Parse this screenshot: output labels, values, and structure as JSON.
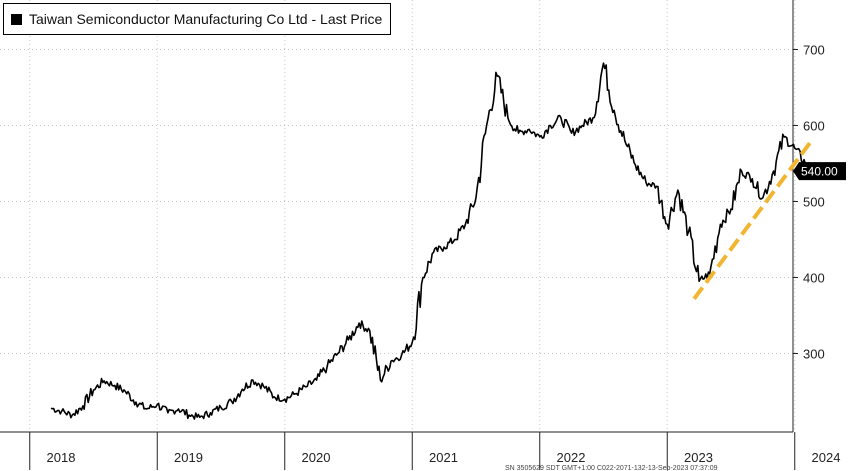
{
  "chart_data": {
    "type": "line",
    "title": "",
    "legend": {
      "entry": "Taiwan Semiconductor Manufacturing Co Ltd - Last Price",
      "placement": "top-left",
      "color": "#000000"
    },
    "xlabel": "",
    "ylabel": "",
    "x_ticks": [
      "2018",
      "2019",
      "2020",
      "2021",
      "2022",
      "2023",
      "2024"
    ],
    "x_range": [
      "2017-09",
      "2024-06"
    ],
    "y_ticks": [
      300,
      400,
      500,
      600,
      700
    ],
    "ylim": [
      200,
      760
    ],
    "y_axis_position": "right",
    "grid": "dotted",
    "last_price_label": "540.00",
    "footer_text": "SN 3505629 SDT  GMT+1:00  C022-2071-132-13-Sep-2023 07:37:09",
    "series": [
      {
        "name": "Taiwan Semiconductor Manufacturing Co Ltd - Last Price",
        "color": "#000000",
        "points": [
          [
            "2017-09",
            228
          ],
          [
            "2017-10",
            224
          ],
          [
            "2017-11",
            219
          ],
          [
            "2017-12",
            231
          ],
          [
            "2018-01",
            252
          ],
          [
            "2018-02",
            264
          ],
          [
            "2018-03",
            258
          ],
          [
            "2018-04",
            250
          ],
          [
            "2018-05",
            236
          ],
          [
            "2018-06",
            227
          ],
          [
            "2018-07",
            233
          ],
          [
            "2018-08",
            222
          ],
          [
            "2018-09",
            227
          ],
          [
            "2018-10",
            219
          ],
          [
            "2018-11",
            216
          ],
          [
            "2018-12",
            222
          ],
          [
            "2019-01",
            229
          ],
          [
            "2019-02",
            237
          ],
          [
            "2019-03",
            253
          ],
          [
            "2019-04",
            265
          ],
          [
            "2019-05",
            257
          ],
          [
            "2019-06",
            243
          ],
          [
            "2019-07",
            240
          ],
          [
            "2019-08",
            247
          ],
          [
            "2019-09",
            256
          ],
          [
            "2019-10",
            265
          ],
          [
            "2019-11",
            283
          ],
          [
            "2019-12",
            300
          ],
          [
            "2020-01",
            318
          ],
          [
            "2020-02",
            340
          ],
          [
            "2020-03",
            330
          ],
          [
            "2020-04",
            265
          ],
          [
            "2020-05",
            290
          ],
          [
            "2020-06",
            298
          ],
          [
            "2020-07",
            315
          ],
          [
            "2020-08",
            400
          ],
          [
            "2020-09",
            433
          ],
          [
            "2020-10",
            440
          ],
          [
            "2020-11",
            450
          ],
          [
            "2020-12",
            470
          ],
          [
            "2021-01",
            505
          ],
          [
            "2021-02",
            600
          ],
          [
            "2021-03",
            665
          ],
          [
            "2021-04",
            610
          ],
          [
            "2021-05",
            590
          ],
          [
            "2021-06",
            595
          ],
          [
            "2021-07",
            585
          ],
          [
            "2021-08",
            600
          ],
          [
            "2021-09",
            610
          ],
          [
            "2021-10",
            590
          ],
          [
            "2021-11",
            600
          ],
          [
            "2021-12",
            610
          ],
          [
            "2022-01",
            682
          ],
          [
            "2022-02",
            620
          ],
          [
            "2022-03",
            580
          ],
          [
            "2022-04",
            548
          ],
          [
            "2022-05",
            525
          ],
          [
            "2022-06",
            520
          ],
          [
            "2022-07",
            470
          ],
          [
            "2022-08",
            515
          ],
          [
            "2022-09",
            460
          ],
          [
            "2022-10",
            395
          ],
          [
            "2022-11",
            405
          ],
          [
            "2022-12",
            470
          ],
          [
            "2023-01",
            490
          ],
          [
            "2023-02",
            540
          ],
          [
            "2023-03",
            530
          ],
          [
            "2023-04",
            505
          ],
          [
            "2023-05",
            540
          ],
          [
            "2023-06",
            585
          ],
          [
            "2023-07",
            570
          ],
          [
            "2023-08",
            550
          ],
          [
            "2023-09",
            540
          ]
        ]
      }
    ],
    "annotations": [
      {
        "type": "trendline",
        "style": "dashed",
        "color": "#f2b531",
        "from": [
          "2022-10",
          372
        ],
        "to": [
          "2023-08",
          578
        ]
      }
    ]
  }
}
